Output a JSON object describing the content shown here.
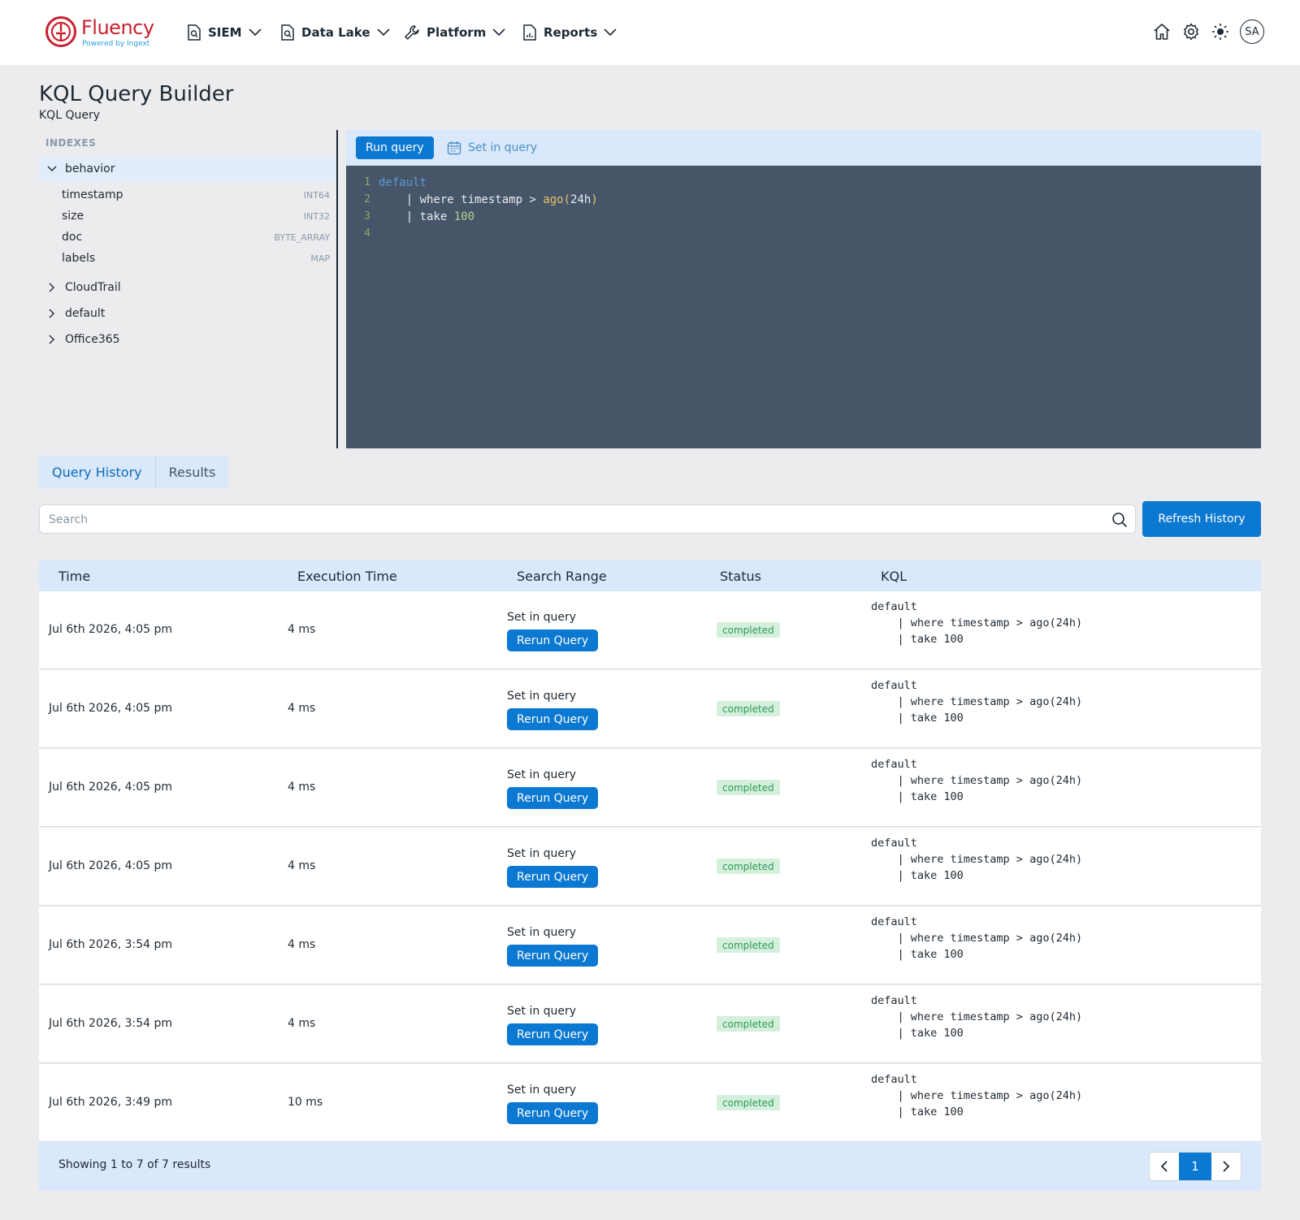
{
  "brand": {
    "name": "Fluency",
    "tagline": "Powered by Ingext",
    "color": "#c8202f"
  },
  "nav": {
    "items": [
      {
        "label": "SIEM",
        "icon": "search-document-icon"
      },
      {
        "label": "Data Lake",
        "icon": "search-document-icon"
      },
      {
        "label": "Platform",
        "icon": "wrench-icon"
      },
      {
        "label": "Reports",
        "icon": "report-document-icon"
      }
    ],
    "right_icons": [
      "home-icon",
      "gear-icon",
      "sun-icon"
    ],
    "avatar": "SA"
  },
  "page": {
    "title": "KQL Query Builder",
    "subtitle": "KQL Query"
  },
  "indexes": {
    "heading": "INDEXES",
    "groups": [
      {
        "name": "behavior",
        "expanded": true
      },
      {
        "name": "CloudTrail",
        "expanded": false
      },
      {
        "name": "default",
        "expanded": false
      },
      {
        "name": "Office365",
        "expanded": false
      }
    ],
    "fields": [
      {
        "name": "timestamp",
        "type": "INT64"
      },
      {
        "name": "size",
        "type": "INT32"
      },
      {
        "name": "doc",
        "type": "BYTE_ARRAY"
      },
      {
        "name": "labels",
        "type": "MAP"
      }
    ]
  },
  "editor": {
    "run_label": "Run query",
    "range_label": "Set in query",
    "line_numbers": [
      "1",
      "2",
      "3",
      "4"
    ],
    "code": {
      "l1_table": "default",
      "l2_pipe": "    | where timestamp > ",
      "l2_fn": "ago(",
      "l2_arg": "24h",
      "l2_close": ")",
      "l3_pipe": "    | take ",
      "l3_num": "100"
    }
  },
  "tabs": [
    {
      "label": "Query History",
      "active": true
    },
    {
      "label": "Results",
      "active": false
    }
  ],
  "search": {
    "placeholder": "Search",
    "value": ""
  },
  "refresh_label": "Refresh History",
  "table": {
    "columns": [
      "Time",
      "Execution Time",
      "Search Range",
      "Status",
      "KQL"
    ],
    "rerun_label": "Rerun Query",
    "rows": [
      {
        "time": "Jul 6th 2026, 4:05 pm",
        "exec": "4 ms",
        "range": "Set in query",
        "status": "completed",
        "kql": "default\n    | where timestamp > ago(24h)\n    | take 100"
      },
      {
        "time": "Jul 6th 2026, 4:05 pm",
        "exec": "4 ms",
        "range": "Set in query",
        "status": "completed",
        "kql": "default\n    | where timestamp > ago(24h)\n    | take 100"
      },
      {
        "time": "Jul 6th 2026, 4:05 pm",
        "exec": "4 ms",
        "range": "Set in query",
        "status": "completed",
        "kql": "default\n    | where timestamp > ago(24h)\n    | take 100"
      },
      {
        "time": "Jul 6th 2026, 4:05 pm",
        "exec": "4 ms",
        "range": "Set in query",
        "status": "completed",
        "kql": "default\n    | where timestamp > ago(24h)\n    | take 100"
      },
      {
        "time": "Jul 6th 2026, 3:54 pm",
        "exec": "4 ms",
        "range": "Set in query",
        "status": "completed",
        "kql": "default\n    | where timestamp > ago(24h)\n    | take 100"
      },
      {
        "time": "Jul 6th 2026, 3:54 pm",
        "exec": "4 ms",
        "range": "Set in query",
        "status": "completed",
        "kql": "default\n    | where timestamp > ago(24h)\n    | take 100"
      },
      {
        "time": "Jul 6th 2026, 3:49 pm",
        "exec": "10 ms",
        "range": "Set in query",
        "status": "completed",
        "kql": "default\n    | where timestamp > ago(24h)\n    | take 100"
      }
    ]
  },
  "footer": {
    "summary": "Showing 1 to 7 of 7 results",
    "current_page": "1"
  },
  "colors": {
    "accent": "#0b78d1",
    "editor_bg": "#475569",
    "header_bg": "#dae8fb",
    "status_bg": "#d4f0dc",
    "status_text": "#2e9a56"
  }
}
